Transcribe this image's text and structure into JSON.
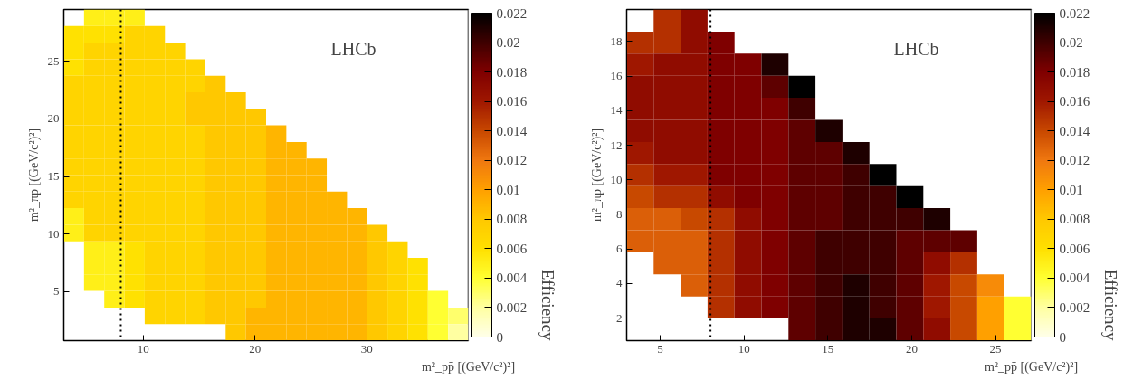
{
  "chart_data": [
    {
      "type": "heatmap",
      "xlabel": "m²_pp̄ [(GeV/c²)²]",
      "ylabel": "m²_πp [(GeV/c²)²]",
      "clabel": "Efficiency",
      "annotations": [
        "LHCb"
      ],
      "xlim": [
        2.9,
        39.1
      ],
      "ylim": [
        0.74,
        29.5
      ],
      "xticks": [
        10,
        20,
        30
      ],
      "yticks": [
        5,
        10,
        15,
        20,
        25
      ],
      "clim": [
        0,
        0.022
      ],
      "cticks": [
        0,
        0.002,
        0.004,
        0.006,
        0.008,
        0.01,
        0.012,
        0.014,
        0.016,
        0.018,
        0.02,
        0.022
      ],
      "ref_lines": [
        {
          "axis": "x",
          "value": 8,
          "line_style": "dotted"
        }
      ],
      "cells": [
        [
          null,
          0.005,
          0.005,
          0.005,
          null,
          null,
          null,
          null,
          null,
          null,
          null,
          null,
          null,
          null,
          null,
          null,
          null,
          null,
          null,
          null
        ],
        [
          0.006,
          0.006,
          0.006,
          0.007,
          0.007,
          null,
          null,
          null,
          null,
          null,
          null,
          null,
          null,
          null,
          null,
          null,
          null,
          null,
          null,
          null
        ],
        [
          0.006,
          0.007,
          0.007,
          0.007,
          0.007,
          0.007,
          null,
          null,
          null,
          null,
          null,
          null,
          null,
          null,
          null,
          null,
          null,
          null,
          null,
          null
        ],
        [
          0.006,
          0.007,
          0.007,
          0.007,
          0.007,
          0.007,
          0.007,
          null,
          null,
          null,
          null,
          null,
          null,
          null,
          null,
          null,
          null,
          null,
          null,
          null
        ],
        [
          0.007,
          0.007,
          0.007,
          0.007,
          0.007,
          0.007,
          0.007,
          0.008,
          null,
          null,
          null,
          null,
          null,
          null,
          null,
          null,
          null,
          null,
          null,
          null
        ],
        [
          0.007,
          0.007,
          0.007,
          0.007,
          0.007,
          0.007,
          0.008,
          0.008,
          0.008,
          null,
          null,
          null,
          null,
          null,
          null,
          null,
          null,
          null,
          null,
          null
        ],
        [
          0.007,
          0.007,
          0.007,
          0.007,
          0.007,
          0.007,
          0.008,
          0.008,
          0.008,
          0.008,
          null,
          null,
          null,
          null,
          null,
          null,
          null,
          null,
          null,
          null
        ],
        [
          0.007,
          0.007,
          0.007,
          0.007,
          0.007,
          0.007,
          0.007,
          0.008,
          0.008,
          0.008,
          0.009,
          null,
          null,
          null,
          null,
          null,
          null,
          null,
          null,
          null
        ],
        [
          0.007,
          0.007,
          0.007,
          0.007,
          0.007,
          0.007,
          0.007,
          0.008,
          0.008,
          0.008,
          0.009,
          0.009,
          null,
          null,
          null,
          null,
          null,
          null,
          null,
          null
        ],
        [
          0.007,
          0.007,
          0.007,
          0.007,
          0.007,
          0.007,
          0.007,
          0.008,
          0.008,
          0.008,
          0.009,
          0.009,
          0.009,
          null,
          null,
          null,
          null,
          null,
          null,
          null
        ],
        [
          0.007,
          0.007,
          0.007,
          0.007,
          0.007,
          0.007,
          0.007,
          0.008,
          0.008,
          0.008,
          0.009,
          0.009,
          0.009,
          null,
          null,
          null,
          null,
          null,
          null,
          null
        ],
        [
          0.007,
          0.007,
          0.007,
          0.007,
          0.007,
          0.007,
          0.007,
          0.008,
          0.008,
          0.008,
          0.009,
          0.009,
          0.009,
          0.009,
          null,
          null,
          null,
          null,
          null,
          null
        ],
        [
          0.005,
          0.007,
          0.007,
          0.007,
          0.007,
          0.007,
          0.007,
          0.008,
          0.008,
          0.008,
          0.009,
          0.009,
          0.009,
          0.009,
          0.009,
          null,
          null,
          null,
          null,
          null
        ],
        [
          0.005,
          0.007,
          0.007,
          0.007,
          0.007,
          0.007,
          0.007,
          0.008,
          0.008,
          0.008,
          0.009,
          0.009,
          0.009,
          0.009,
          0.009,
          0.008,
          null,
          null,
          null,
          null
        ],
        [
          null,
          0.005,
          0.005,
          0.006,
          0.007,
          0.007,
          0.007,
          0.008,
          0.008,
          0.008,
          0.009,
          0.009,
          0.009,
          0.009,
          0.009,
          0.008,
          0.007,
          null,
          null,
          null
        ],
        [
          null,
          0.005,
          0.005,
          0.006,
          0.007,
          0.007,
          0.007,
          0.008,
          0.008,
          0.008,
          0.009,
          0.009,
          0.009,
          0.009,
          0.009,
          0.008,
          0.007,
          0.006,
          null,
          null
        ],
        [
          null,
          0.005,
          0.005,
          0.006,
          0.007,
          0.007,
          0.007,
          0.008,
          0.008,
          0.008,
          0.009,
          0.009,
          0.009,
          0.009,
          0.009,
          0.008,
          0.007,
          0.006,
          null,
          null
        ],
        [
          null,
          null,
          0.005,
          0.006,
          0.007,
          0.007,
          0.007,
          0.008,
          0.008,
          0.008,
          0.009,
          0.009,
          0.009,
          0.009,
          0.009,
          0.008,
          0.007,
          0.006,
          0.004,
          null
        ],
        [
          null,
          null,
          null,
          null,
          0.007,
          0.007,
          0.007,
          0.008,
          0.008,
          0.009,
          0.009,
          0.009,
          0.009,
          0.009,
          0.009,
          0.008,
          0.007,
          0.006,
          0.004,
          0.003
        ],
        [
          null,
          null,
          null,
          null,
          null,
          null,
          null,
          null,
          0.008,
          0.009,
          0.009,
          0.009,
          0.009,
          0.009,
          0.009,
          0.008,
          0.007,
          0.006,
          0.004,
          0.002
        ]
      ]
    },
    {
      "type": "heatmap",
      "xlabel": "m²_pp̄ [(GeV/c²)²]",
      "ylabel": "m²_πp [(GeV/c²)²]",
      "clabel": "Efficiency",
      "annotations": [
        "LHCb"
      ],
      "xlim": [
        3.0,
        27.13
      ],
      "ylim": [
        0.7,
        19.85
      ],
      "xticks": [
        5,
        10,
        15,
        20,
        25
      ],
      "yticks": [
        2,
        4,
        6,
        8,
        10,
        12,
        14,
        16,
        18
      ],
      "clim": [
        0,
        0.022
      ],
      "cticks": [
        0,
        0.002,
        0.004,
        0.006,
        0.008,
        0.01,
        0.012,
        0.014,
        0.016,
        0.018,
        0.02,
        0.022
      ],
      "ref_lines": [
        {
          "axis": "x",
          "value": 8,
          "line_style": "dotted"
        }
      ],
      "cells": [
        [
          null,
          0.015,
          0.017,
          null,
          null,
          null,
          null,
          null,
          null,
          null,
          null,
          null,
          null,
          null,
          null
        ],
        [
          0.015,
          0.015,
          0.017,
          0.018,
          null,
          null,
          null,
          null,
          null,
          null,
          null,
          null,
          null,
          null,
          null
        ],
        [
          0.016,
          0.017,
          0.017,
          0.018,
          0.018,
          0.021,
          null,
          null,
          null,
          null,
          null,
          null,
          null,
          null,
          null
        ],
        [
          0.017,
          0.017,
          0.017,
          0.018,
          0.018,
          0.019,
          0.022,
          null,
          null,
          null,
          null,
          null,
          null,
          null,
          null
        ],
        [
          0.017,
          0.017,
          0.017,
          0.018,
          0.018,
          0.018,
          0.02,
          null,
          null,
          null,
          null,
          null,
          null,
          null,
          null
        ],
        [
          0.017,
          0.017,
          0.017,
          0.018,
          0.018,
          0.018,
          0.019,
          0.021,
          null,
          null,
          null,
          null,
          null,
          null,
          null
        ],
        [
          0.016,
          0.017,
          0.017,
          0.018,
          0.018,
          0.018,
          0.019,
          0.019,
          0.021,
          null,
          null,
          null,
          null,
          null,
          null
        ],
        [
          0.015,
          0.016,
          0.016,
          0.018,
          0.018,
          0.018,
          0.019,
          0.019,
          0.02,
          0.022,
          null,
          null,
          null,
          null,
          null
        ],
        [
          0.014,
          0.015,
          0.015,
          0.017,
          0.018,
          0.018,
          0.019,
          0.019,
          0.02,
          0.02,
          0.022,
          null,
          null,
          null,
          null
        ],
        [
          0.013,
          0.013,
          0.014,
          0.015,
          0.017,
          0.018,
          0.019,
          0.019,
          0.02,
          0.02,
          0.02,
          0.021,
          null,
          null,
          null
        ],
        [
          0.013,
          0.013,
          0.013,
          0.015,
          0.017,
          0.018,
          0.019,
          0.02,
          0.02,
          0.02,
          0.019,
          0.019,
          0.019,
          null,
          null
        ],
        [
          null,
          0.013,
          0.013,
          0.015,
          0.017,
          0.018,
          0.019,
          0.02,
          0.02,
          0.02,
          0.019,
          0.017,
          0.015,
          null,
          null
        ],
        [
          null,
          null,
          0.013,
          0.015,
          0.017,
          0.018,
          0.019,
          0.02,
          0.021,
          0.02,
          0.019,
          0.016,
          0.014,
          0.011,
          null
        ],
        [
          null,
          null,
          null,
          0.015,
          0.017,
          0.018,
          0.019,
          0.02,
          0.021,
          0.02,
          0.019,
          0.016,
          0.014,
          0.01,
          0.004
        ],
        [
          null,
          null,
          null,
          null,
          null,
          null,
          0.019,
          0.02,
          0.021,
          0.021,
          0.019,
          0.017,
          0.014,
          0.01,
          0.004
        ]
      ]
    }
  ]
}
